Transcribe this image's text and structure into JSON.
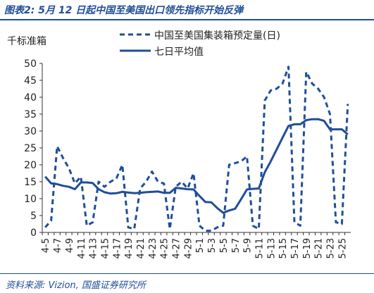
{
  "figure": {
    "title": "图表2:  5月 12 日起中国至美国出口领先指标开始反弹",
    "source": "资料来源:  Vizion,  国盛证券研究所"
  },
  "colors": {
    "series": "#1f4e99",
    "axis": "#333333",
    "header": "#1f4e99"
  },
  "chart_data": {
    "type": "line",
    "title": "",
    "ylabel": "千标准箱",
    "xlabel": "",
    "ylim": [
      0,
      50
    ],
    "yticks": [
      0,
      5,
      10,
      15,
      20,
      25,
      30,
      35,
      40,
      45,
      50
    ],
    "grid": false,
    "legend_position": "top-right",
    "x": [
      "4-5",
      "4-6",
      "4-7",
      "4-8",
      "4-9",
      "4-10",
      "4-11",
      "4-12",
      "4-13",
      "4-14",
      "4-15",
      "4-16",
      "4-17",
      "4-18",
      "4-19",
      "4-20",
      "4-21",
      "4-22",
      "4-23",
      "4-24",
      "4-25",
      "4-26",
      "4-27",
      "4-28",
      "4-29",
      "4-30",
      "5-1",
      "5-2",
      "5-3",
      "5-4",
      "5-5",
      "5-6",
      "5-7",
      "5-8",
      "5-9",
      "5-10",
      "5-11",
      "5-12",
      "5-13",
      "5-14",
      "5-15",
      "5-16",
      "5-17",
      "5-18",
      "5-19",
      "5-20",
      "5-21",
      "5-22",
      "5-23",
      "5-24",
      "5-25",
      "5-26"
    ],
    "xtick_labels": [
      "4-5",
      "4-7",
      "4-9",
      "4-11",
      "4-13",
      "4-15",
      "4-17",
      "4-19",
      "4-21",
      "4-23",
      "4-25",
      "4-27",
      "4-29",
      "5-1",
      "5-3",
      "5-5",
      "5-7",
      "5-9",
      "5-11",
      "5-13",
      "5-15",
      "5-17",
      "5-19",
      "5-21",
      "5-23",
      "5-25"
    ],
    "series": [
      {
        "name": "中国至美国集装箱预定量(日)",
        "style": "dashed",
        "values": [
          1.5,
          3.5,
          25.5,
          22,
          19,
          14.5,
          16.5,
          2,
          3,
          15,
          13.5,
          15,
          16,
          20,
          1.5,
          1,
          13,
          15,
          18,
          15,
          14.5,
          1,
          13.5,
          15,
          13,
          17.5,
          2,
          0.5,
          0.5,
          1.5,
          2,
          20,
          20.5,
          21,
          22.5,
          2,
          1,
          39,
          42,
          42.5,
          44,
          49,
          3,
          2,
          47.5,
          44,
          42.5,
          40,
          35,
          3,
          2.5,
          38
        ]
      },
      {
        "name": "七日平均值",
        "style": "solid",
        "values": [
          16.5,
          14.5,
          14.3,
          13.8,
          13.5,
          12.8,
          14.8,
          14.8,
          14.6,
          12.8,
          11.9,
          11.5,
          11.6,
          12,
          11.8,
          11.6,
          11.7,
          11.9,
          12,
          12.1,
          11.7,
          11.7,
          13.2,
          13,
          12.8,
          12.7,
          10.8,
          9,
          8.9,
          7.2,
          5.8,
          6.5,
          7,
          9.8,
          12.7,
          12.9,
          13,
          17.8,
          21,
          24.5,
          28,
          31.5,
          32,
          32,
          33.2,
          33.5,
          33.5,
          33,
          30.5,
          30.5,
          30.5,
          29
        ]
      }
    ]
  }
}
